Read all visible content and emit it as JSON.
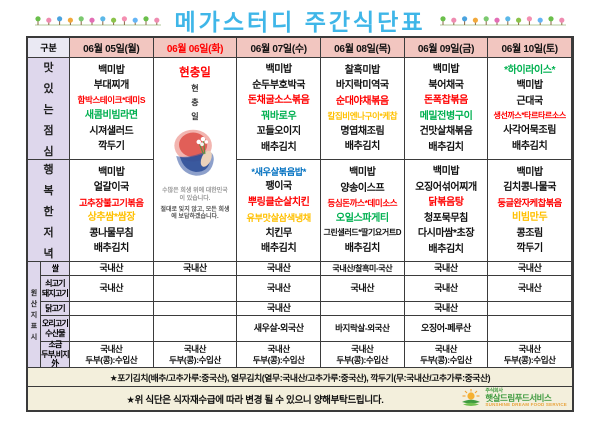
{
  "title": "메가스터디 주간식단표",
  "colors": {
    "title_blue": "#3fb6e8",
    "header_pink": "#f2c6c0",
    "label_purple": "#ded7ec",
    "corner_bg": "#eae9f3",
    "note_bg": "#f3efdc",
    "item_red": "#ff0000",
    "item_green": "#00b050",
    "item_orange": "#ffc000",
    "item_blue": "#0070c0"
  },
  "header": {
    "corner": "구분",
    "dates": [
      {
        "label": "06월 05일(월)",
        "highlight": false
      },
      {
        "label": "06월 06일(화)",
        "highlight": true
      },
      {
        "label": "06월 07일(수)",
        "highlight": false
      },
      {
        "label": "06월 08일(목)",
        "highlight": false
      },
      {
        "label": "06월 09일(금)",
        "highlight": false
      },
      {
        "label": "06월 10일(토)",
        "highlight": false
      }
    ]
  },
  "holiday_col": 1,
  "holiday": {
    "name": "현충일",
    "vertical_chars": "현충일",
    "caption_light": "수많은 희생 위에 대한민국이 있습니다.",
    "caption_dark": "절대로 잊지 않고, 모든 희생에 보답하겠습니다."
  },
  "lunch": {
    "label": "맛있는점심",
    "menus": [
      [
        {
          "t": "백미밥",
          "c": "black"
        },
        {
          "t": "부대찌개",
          "c": "black"
        },
        {
          "t": "함박스테이크*데미S",
          "c": "red"
        },
        {
          "t": "새콤비빔라면",
          "c": "green"
        },
        {
          "t": "시져샐러드",
          "c": "black"
        },
        {
          "t": "깍두기",
          "c": "black"
        }
      ],
      null,
      [
        {
          "t": "백미밥",
          "c": "black"
        },
        {
          "t": "순두부호박국",
          "c": "black"
        },
        {
          "t": "돈채굴소스볶음",
          "c": "red"
        },
        {
          "t": "꿔바로우",
          "c": "green"
        },
        {
          "t": "꼬들오이지",
          "c": "black"
        },
        {
          "t": "배추김치",
          "c": "black"
        }
      ],
      [
        {
          "t": "찰흑미밥",
          "c": "black"
        },
        {
          "t": "바지락미역국",
          "c": "black"
        },
        {
          "t": "순대야채볶음",
          "c": "red"
        },
        {
          "t": "칼집비엔나구이*케찹",
          "c": "orange"
        },
        {
          "t": "명엽채조림",
          "c": "black"
        },
        {
          "t": "배추김치",
          "c": "black"
        }
      ],
      [
        {
          "t": "백미밥",
          "c": "black"
        },
        {
          "t": "북어채국",
          "c": "black"
        },
        {
          "t": "돈폭찹볶음",
          "c": "red"
        },
        {
          "t": "메밀전병구이",
          "c": "green"
        },
        {
          "t": "건맛살채볶음",
          "c": "black"
        },
        {
          "t": "배추김치",
          "c": "black"
        }
      ],
      [
        {
          "t": "*하이라이스*",
          "c": "green"
        },
        {
          "t": "백미밥",
          "c": "black"
        },
        {
          "t": "근대국",
          "c": "black"
        },
        {
          "t": "생선까스*타르타르소스",
          "c": "red"
        },
        {
          "t": "사각어묵조림",
          "c": "black"
        },
        {
          "t": "배추김치",
          "c": "black"
        }
      ]
    ]
  },
  "dinner": {
    "label": "행복한저녁",
    "menus": [
      [
        {
          "t": "백미밥",
          "c": "black"
        },
        {
          "t": "얼갈이국",
          "c": "black"
        },
        {
          "t": "고추장불고기볶음",
          "c": "red"
        },
        {
          "t": "상추쌈*쌈장",
          "c": "orange"
        },
        {
          "t": "콩나물무침",
          "c": "black"
        },
        {
          "t": "배추김치",
          "c": "black"
        }
      ],
      null,
      [
        {
          "t": "*새우살볶음밥*",
          "c": "blue"
        },
        {
          "t": "팽이국",
          "c": "black"
        },
        {
          "t": "뿌링클순살치킨",
          "c": "red"
        },
        {
          "t": "유부맛살삼색냉채",
          "c": "orange"
        },
        {
          "t": "치킨무",
          "c": "black"
        },
        {
          "t": "배추김치",
          "c": "black"
        }
      ],
      [
        {
          "t": "백미밥",
          "c": "black"
        },
        {
          "t": "양송이스프",
          "c": "black"
        },
        {
          "t": "등심돈까스*데미소스",
          "c": "red"
        },
        {
          "t": "오일스파게티",
          "c": "green"
        },
        {
          "t": "그린샐러드*딸기요거트D",
          "c": "black"
        },
        {
          "t": "배추김치",
          "c": "black"
        }
      ],
      [
        {
          "t": "백미밥",
          "c": "black"
        },
        {
          "t": "오징어섞어찌개",
          "c": "black"
        },
        {
          "t": "닭볶음탕",
          "c": "red"
        },
        {
          "t": "청포묵무침",
          "c": "black"
        },
        {
          "t": "다시마쌈*초장",
          "c": "black"
        },
        {
          "t": "배추김치",
          "c": "black"
        }
      ],
      [
        {
          "t": "백미밥",
          "c": "black"
        },
        {
          "t": "김치콩나물국",
          "c": "black"
        },
        {
          "t": "둥글완자케찹볶음",
          "c": "red"
        },
        {
          "t": "비빔만두",
          "c": "orange"
        },
        {
          "t": "콩조림",
          "c": "black"
        },
        {
          "t": "깍두기",
          "c": "black"
        }
      ]
    ]
  },
  "origin": {
    "section_label": "원산지표시",
    "rows": [
      {
        "label": "쌀",
        "values": [
          "국내산",
          "국내산",
          "국내산",
          "국내산/찰흑미-국산",
          "국내산",
          "국내산"
        ]
      },
      {
        "label": "쇠고기\n돼지고기",
        "values": [
          "국내산",
          "",
          "국내산",
          "국내산",
          "국내산",
          "국내산"
        ]
      },
      {
        "label": "닭고기",
        "values": [
          "",
          "",
          "국내산",
          "",
          "국내산",
          ""
        ]
      },
      {
        "label": "오리고기\n수산물",
        "values": [
          "",
          "",
          "새우살-외국산",
          "바지락살-외국산",
          "오징어-페루산",
          ""
        ]
      },
      {
        "label": "소금\n두부,비지外",
        "values": [
          "국내산\n두부(콩):수입산",
          "국내산\n두부(콩):수입산",
          "국내산\n두부(콩):수입산",
          "국내산\n두부(콩):수입산",
          "국내산\n두부(콩):수입산",
          "국내산\n두부(콩):수입산"
        ]
      }
    ]
  },
  "notes": {
    "line1": "★포기김치(배추/고추가루:중국산), 열무김치(열무:국내산/고추가루:중국산), 깍두기(무:국내산/고추가루:중국산)",
    "line2": "★위 식단은 식자재수급에 따라 변경 될 수 있으니 양해부탁드립니다."
  },
  "logo": {
    "company": "주식회사",
    "name": "햇살드림푸드서비스",
    "tagline": "SUNSHINE DREAM FOOD SERVICE"
  }
}
